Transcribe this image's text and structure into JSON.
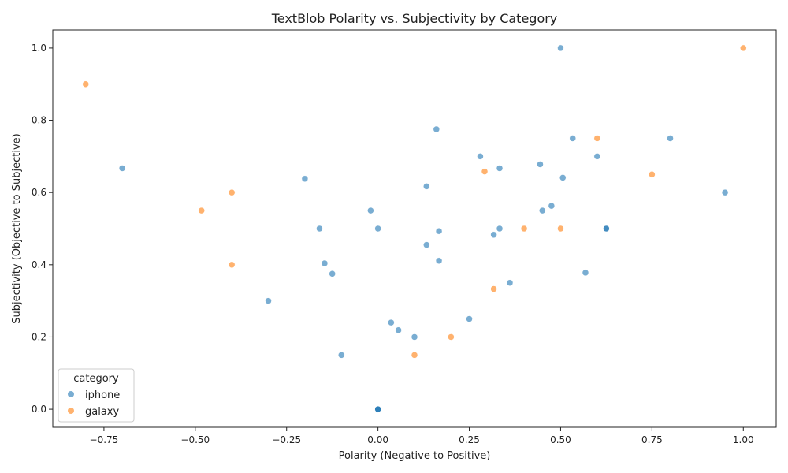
{
  "chart_data": {
    "type": "scatter",
    "title": "TextBlob Polarity vs. Subjectivity by Category",
    "xlabel": "Polarity (Negative to Positive)",
    "ylabel": "Subjectivity (Objective to Subjective)",
    "xlim": [
      -0.89,
      1.09
    ],
    "ylim": [
      -0.05,
      1.05
    ],
    "x_ticks": [
      -0.75,
      -0.5,
      -0.25,
      0.0,
      0.25,
      0.5,
      0.75,
      1.0
    ],
    "x_tick_labels": [
      "−0.75",
      "−0.50",
      "−0.25",
      "0.00",
      "0.25",
      "0.50",
      "0.75",
      "1.00"
    ],
    "y_ticks": [
      0.0,
      0.2,
      0.4,
      0.6,
      0.8,
      1.0
    ],
    "y_tick_labels": [
      "0.0",
      "0.2",
      "0.4",
      "0.6",
      "0.8",
      "1.0"
    ],
    "grid": false,
    "legend": {
      "title": "category",
      "placement": "lower-left",
      "entries": [
        "iphone",
        "galaxy"
      ]
    },
    "colors": {
      "iphone": "#1f77b4",
      "galaxy": "#ff7f0e"
    },
    "series": [
      {
        "name": "iphone",
        "points": [
          [
            0.5,
            1.0
          ],
          [
            0.16,
            0.775
          ],
          [
            0.8,
            0.75
          ],
          [
            0.533,
            0.75
          ],
          [
            0.28,
            0.7
          ],
          [
            0.6,
            0.7
          ],
          [
            0.444,
            0.678
          ],
          [
            -0.7,
            0.667
          ],
          [
            0.333,
            0.667
          ],
          [
            0.506,
            0.641
          ],
          [
            -0.2,
            0.638
          ],
          [
            0.133,
            0.617
          ],
          [
            0.95,
            0.6
          ],
          [
            0.475,
            0.563
          ],
          [
            -0.02,
            0.55
          ],
          [
            0.45,
            0.55
          ],
          [
            -0.16,
            0.5
          ],
          [
            0.0,
            0.5
          ],
          [
            0.333,
            0.5
          ],
          [
            0.625,
            0.5
          ],
          [
            0.625,
            0.5
          ],
          [
            0.167,
            0.493
          ],
          [
            0.317,
            0.483
          ],
          [
            0.133,
            0.455
          ],
          [
            0.167,
            0.411
          ],
          [
            -0.146,
            0.404
          ],
          [
            -0.125,
            0.375
          ],
          [
            0.568,
            0.378
          ],
          [
            0.361,
            0.35
          ],
          [
            -0.3,
            0.3
          ],
          [
            0.25,
            0.25
          ],
          [
            0.036,
            0.24
          ],
          [
            0.056,
            0.219
          ],
          [
            0.1,
            0.2
          ],
          [
            -0.1,
            0.15
          ],
          [
            0.0,
            0.0
          ],
          [
            0.0,
            0.0
          ],
          [
            0.0,
            0.0
          ]
        ]
      },
      {
        "name": "galaxy",
        "points": [
          [
            1.0,
            1.0
          ],
          [
            -0.8,
            0.9
          ],
          [
            0.6,
            0.75
          ],
          [
            0.292,
            0.658
          ],
          [
            0.75,
            0.65
          ],
          [
            -0.4,
            0.6
          ],
          [
            -0.483,
            0.55
          ],
          [
            0.4,
            0.5
          ],
          [
            0.5,
            0.5
          ],
          [
            -0.4,
            0.4
          ],
          [
            0.317,
            0.333
          ],
          [
            0.2,
            0.2
          ],
          [
            0.1,
            0.15
          ]
        ]
      }
    ]
  }
}
